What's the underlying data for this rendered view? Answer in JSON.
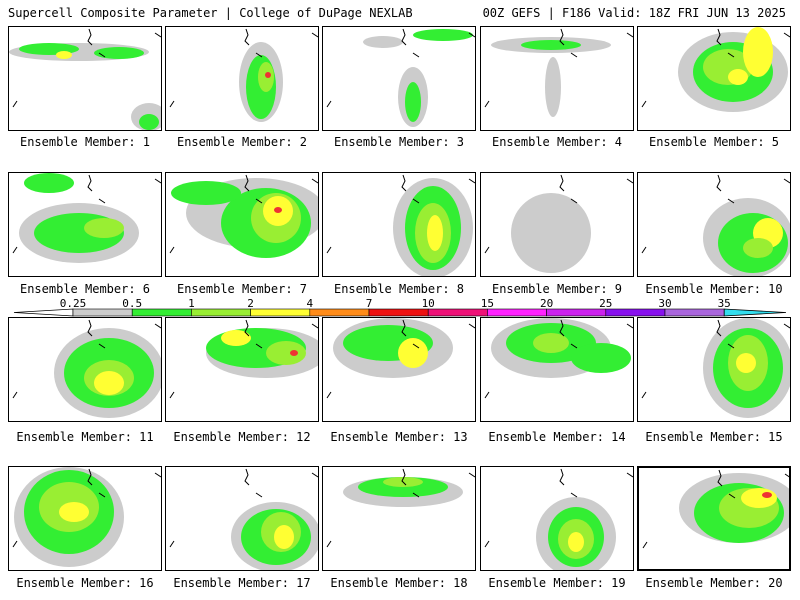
{
  "header": {
    "title": "Supercell Composite Parameter | College of DuPage NEXLAB",
    "run_info": "00Z GEFS | F186 Valid: 18Z FRI JUN 13 2025"
  },
  "members": [
    {
      "label": "Ensemble Member: 1",
      "highlighted": false
    },
    {
      "label": "Ensemble Member: 2",
      "highlighted": false
    },
    {
      "label": "Ensemble Member: 3",
      "highlighted": false
    },
    {
      "label": "Ensemble Member: 4",
      "highlighted": false
    },
    {
      "label": "Ensemble Member: 5",
      "highlighted": false
    },
    {
      "label": "Ensemble Member: 6",
      "highlighted": false
    },
    {
      "label": "Ensemble Member: 7",
      "highlighted": false
    },
    {
      "label": "Ensemble Member: 8",
      "highlighted": false
    },
    {
      "label": "Ensemble Member: 9",
      "highlighted": false
    },
    {
      "label": "Ensemble Member: 10",
      "highlighted": false
    },
    {
      "label": "Ensemble Member: 11",
      "highlighted": false
    },
    {
      "label": "Ensemble Member: 12",
      "highlighted": false
    },
    {
      "label": "Ensemble Member: 13",
      "highlighted": false
    },
    {
      "label": "Ensemble Member: 14",
      "highlighted": false
    },
    {
      "label": "Ensemble Member: 15",
      "highlighted": false
    },
    {
      "label": "Ensemble Member: 16",
      "highlighted": false
    },
    {
      "label": "Ensemble Member: 17",
      "highlighted": false
    },
    {
      "label": "Ensemble Member: 18",
      "highlighted": false
    },
    {
      "label": "Ensemble Member: 19",
      "highlighted": false
    },
    {
      "label": "Ensemble Member: 20",
      "highlighted": true
    }
  ],
  "legend": {
    "thresholds": [
      "0.25",
      "0.5",
      "1",
      "2",
      "4",
      "7",
      "10",
      "15",
      "20",
      "25",
      "30",
      "35"
    ],
    "colors": [
      "#ffffff",
      "#cccccc",
      "#33ee33",
      "#99ee33",
      "#ffff33",
      "#ff8c1a",
      "#ee1111",
      "#ee1177",
      "#ff22ff",
      "#cc22ee",
      "#8811ee",
      "#aa66dd",
      "#33ddee"
    ]
  },
  "colors": {
    "light": "#cccccc",
    "mid": "#33ee33",
    "high": "#99ee33",
    "peak": "#ffff33",
    "max": "#ee3333"
  }
}
